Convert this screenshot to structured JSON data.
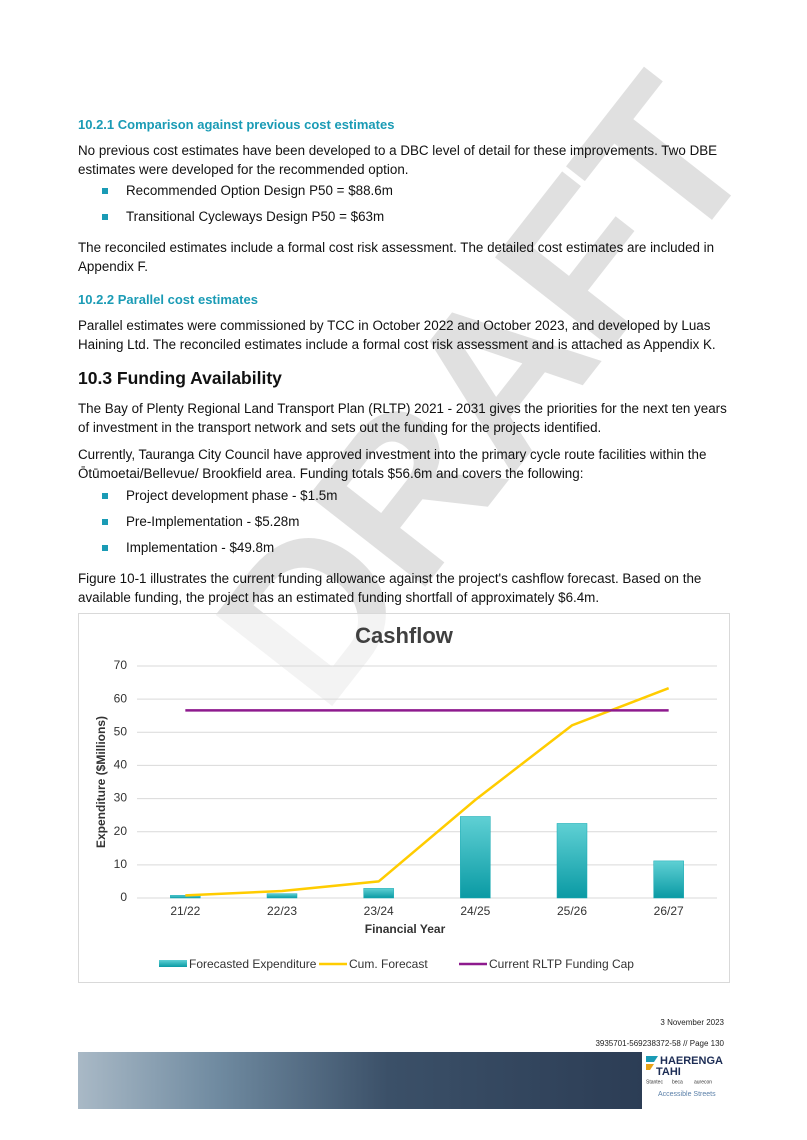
{
  "section_10_2_1": {
    "heading": "10.2.1 Comparison against previous cost estimates",
    "intro": "No previous cost estimates have been developed to a DBC level of detail for these improvements. Two DBE estimates were developed for the recommended option.",
    "bullets": [
      "Recommended Option Design P50 = $88.6m",
      "Transitional Cycleways Design P50 = $63m"
    ],
    "outro": "The reconciled estimates include a formal cost risk assessment. The detailed cost estimates are included in Appendix F."
  },
  "section_10_2_2": {
    "heading": "10.2.2 Parallel cost estimates",
    "body": "Parallel estimates were commissioned by TCC in October 2022 and October 2023, and developed by Luas Haining Ltd. The reconciled estimates include a formal cost risk assessment and is attached as Appendix K."
  },
  "section_10_3": {
    "heading": "10.3 Funding Availability",
    "paragraphs": [
      "The Bay of Plenty Regional Land Transport Plan (RLTP) 2021 - 2031 gives the priorities for the next ten years of investment in the transport network and sets out the funding for the projects identified.",
      "Currently, Tauranga City Council have approved investment into the primary cycle route facilities within the Ōtūmoetai/Bellevue/ Brookfield area. Funding totals $56.6m and covers the following:"
    ],
    "bullets": [
      "Project development phase - $1.5m",
      "Pre-Implementation - $5.28m",
      "Implementation - $49.8m"
    ],
    "closing": "Figure 10-1 illustrates the current funding allowance against the project's cashflow forecast. Based on the available funding, the project has an estimated funding shortfall of approximately $6.4m."
  },
  "chart_data": {
    "type": "combo",
    "title": "Cashflow",
    "x_label": "Financial Year",
    "y_label": "Expenditure ($Millions)",
    "categories": [
      "21/22",
      "22/23",
      "23/24",
      "24/25",
      "25/26",
      "26/27"
    ],
    "series": [
      {
        "name": "Forecasted Expenditure",
        "type": "bar",
        "color": "#17aab3",
        "values": [
          0.8,
          1.3,
          2.9,
          24.6,
          22.5,
          11.2
        ]
      },
      {
        "name": "Cum. Forecast",
        "type": "line",
        "color": "#ffcc00",
        "values": [
          0.8,
          2.1,
          5.0,
          29.6,
          52.1,
          63.3
        ]
      },
      {
        "name": "Current RLTP Funding Cap",
        "type": "line",
        "color": "#8e1a8e",
        "values": [
          56.6,
          56.6,
          56.6,
          56.6,
          56.6,
          56.6
        ]
      }
    ],
    "ylim": [
      0,
      70
    ],
    "yticks": [
      0,
      10,
      20,
      30,
      40,
      50,
      60,
      70
    ],
    "grid": true,
    "legend": "bottom"
  },
  "watermark": "DRAFT",
  "footer": {
    "date": "3 November 2023",
    "reference": "3935701-569238372-58 // Page 130",
    "logos": [
      "HAERENGA",
      "TAHI",
      "Stantec",
      "beca",
      "aurecon",
      "Accessible Streets"
    ]
  }
}
